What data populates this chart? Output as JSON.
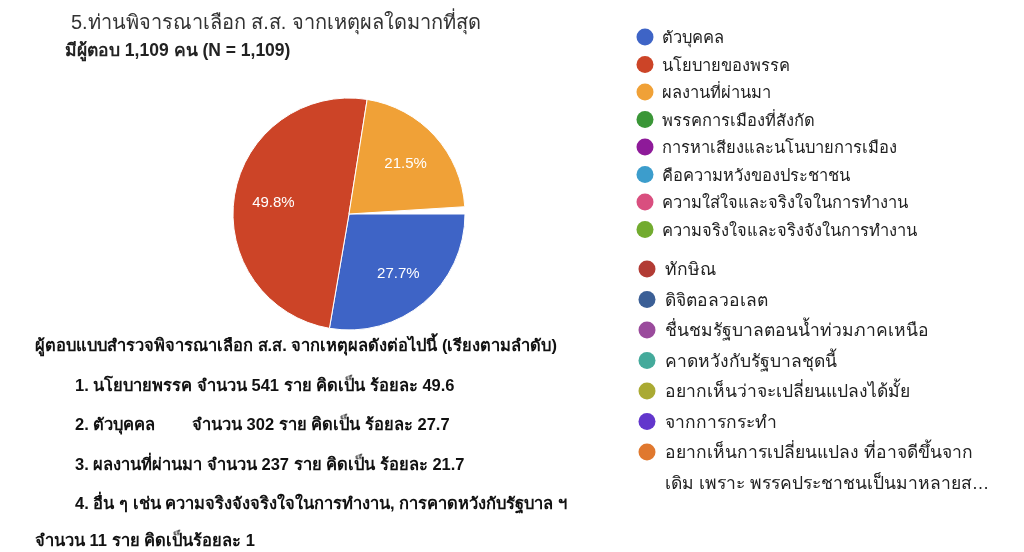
{
  "chart_data": {
    "type": "pie",
    "title": "5.ท่านพิจารณาเลือก ส.ส. จากเหตุผลใดมากที่สุด",
    "subtitle": "มีผู้ตอบ 1,109 คน (N = 1,109)",
    "categories": [
      "ตัวบุคคล",
      "นโยบายของพรรค",
      "ผลงานที่ผ่านมา",
      "พรรคการเมืองที่สังกัด",
      "การหาเสียงและนโนบายการเมือง",
      "คือความหวังของประชาชน",
      "ความใส่ใจและจริงใจในการทำงาน",
      "ความจริงใจและจริงจังในการทำงาน",
      "ทักษิณ",
      "ดิจิตอลวอเลต",
      "ชื่นชมรัฐบาลตอนน้ำท่วมภาคเหนือ",
      "คาดหวังกับรัฐบาลชุดนี้",
      "อยากเห็นว่าจะเปลี่ยนแปลงได้มั้ย",
      "จากการกระทำ",
      "อยากเห็นการเปลี่ยนแปลง ที่อาจดีขึ้นจากเดิม เพราะ พรรคประชาชนเป็นมาหลายส…"
    ],
    "values": [
      27.7,
      49.8,
      21.5,
      null,
      null,
      null,
      null,
      null,
      null,
      null,
      null,
      null,
      null,
      null,
      null
    ],
    "colors": [
      "#3e64c6",
      "#cc4427",
      "#f0a137",
      "#3a9637",
      "#8e1a99",
      "#3c9dcc",
      "#d94f7f",
      "#72ab2f",
      "#b23b34",
      "#3b5f96",
      "#9a4b9c",
      "#44aa9b",
      "#aaaa33",
      "#6236cc",
      "#e0782e"
    ],
    "value_labels": [
      "27.7%",
      "49.8%",
      "21.5%",
      null,
      null,
      null,
      null,
      null,
      null,
      null,
      null,
      null,
      null,
      null,
      null
    ],
    "legend": "right",
    "annotations": [
      "ผู้ตอบแบบสำรวจพิจารณาเลือก ส.ส. จากเหตุผลดังต่อไปนี้ (เรียงตามลำดับ)",
      "1. นโยบายพรรค จำนวน 541 ราย คิดเป็น ร้อยละ 49.6",
      "2. ตัวบุคคล        จำนวน 302 ราย คิดเป็น ร้อยละ 27.7",
      "3. ผลงานที่ผ่านมา จำนวน 237 ราย คิดเป็น ร้อยละ 21.7",
      "4. อื่น ๆ เช่น ความจริงจังจริงใจในการทำงาน, การคาดหวังกับรัฐบาล ฯ จำนวน 11 ราย คิดเป็นร้อยละ 1"
    ]
  }
}
